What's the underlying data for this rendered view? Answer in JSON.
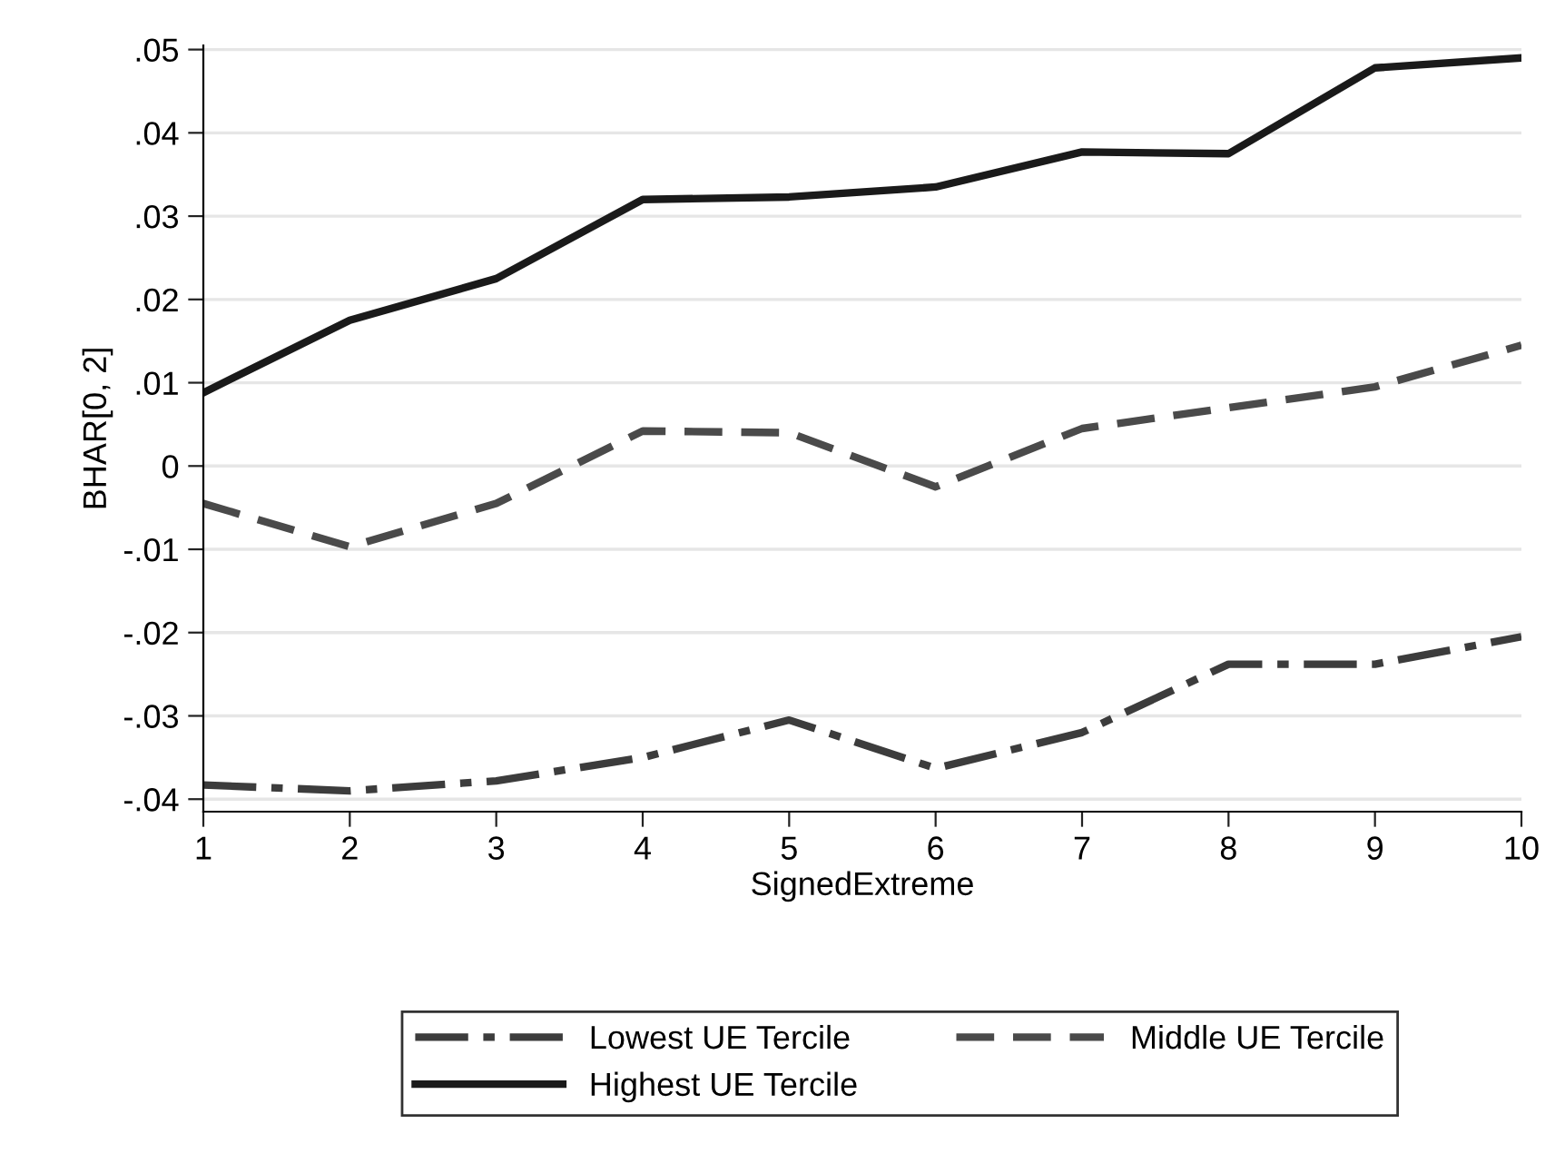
{
  "chart_data": {
    "type": "line",
    "xlabel": "SignedExtreme",
    "ylabel": "BHAR[0, 2]",
    "x": [
      1,
      2,
      3,
      4,
      5,
      6,
      7,
      8,
      9,
      10
    ],
    "series": [
      {
        "name": "Lowest UE Tercile",
        "color": "#3c3c3c",
        "line_style": "dashdot",
        "values": [
          -0.0383,
          -0.039,
          -0.0378,
          -0.035,
          -0.0305,
          -0.0363,
          -0.032,
          -0.0238,
          -0.0238,
          -0.0205
        ]
      },
      {
        "name": "Middle UE Tercile",
        "color": "#4a4a4a",
        "line_style": "dashed",
        "values": [
          -0.0045,
          -0.0097,
          -0.0045,
          0.0042,
          0.004,
          -0.0025,
          0.0045,
          0.007,
          0.0095,
          0.0145
        ]
      },
      {
        "name": "Highest UE Tercile",
        "color": "#1a1a1a",
        "line_style": "solid",
        "values": [
          0.0088,
          0.0175,
          0.0225,
          0.032,
          0.0323,
          0.0335,
          0.0377,
          0.0375,
          0.0478,
          0.049
        ]
      }
    ],
    "xlim": [
      1,
      10
    ],
    "xticks": [
      1,
      2,
      3,
      4,
      5,
      6,
      7,
      8,
      9,
      10
    ],
    "ylim": [
      -0.0415,
      0.0505
    ],
    "yticks": [
      {
        "value": 0.05,
        "label": ".05"
      },
      {
        "value": 0.04,
        "label": ".04"
      },
      {
        "value": 0.03,
        "label": ".03"
      },
      {
        "value": 0.02,
        "label": ".02"
      },
      {
        "value": 0.01,
        "label": ".01"
      },
      0,
      {
        "value": -0.01,
        "label": "-.01"
      },
      {
        "value": -0.02,
        "label": "-.02"
      },
      {
        "value": -0.03,
        "label": "-.03"
      },
      {
        "value": -0.04,
        "label": "-.04"
      }
    ],
    "grid": "y",
    "legend": "bottom",
    "marker": "none"
  }
}
